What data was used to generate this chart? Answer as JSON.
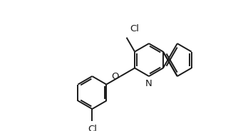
{
  "background_color": "#ffffff",
  "line_color": "#1a1a1a",
  "line_width": 1.4,
  "font_size": 8.5,
  "figsize": [
    3.27,
    1.84
  ],
  "dpi": 100,
  "BL": 0.48,
  "xlim": [
    0.0,
    6.8
  ],
  "ylim": [
    0.3,
    3.8
  ]
}
